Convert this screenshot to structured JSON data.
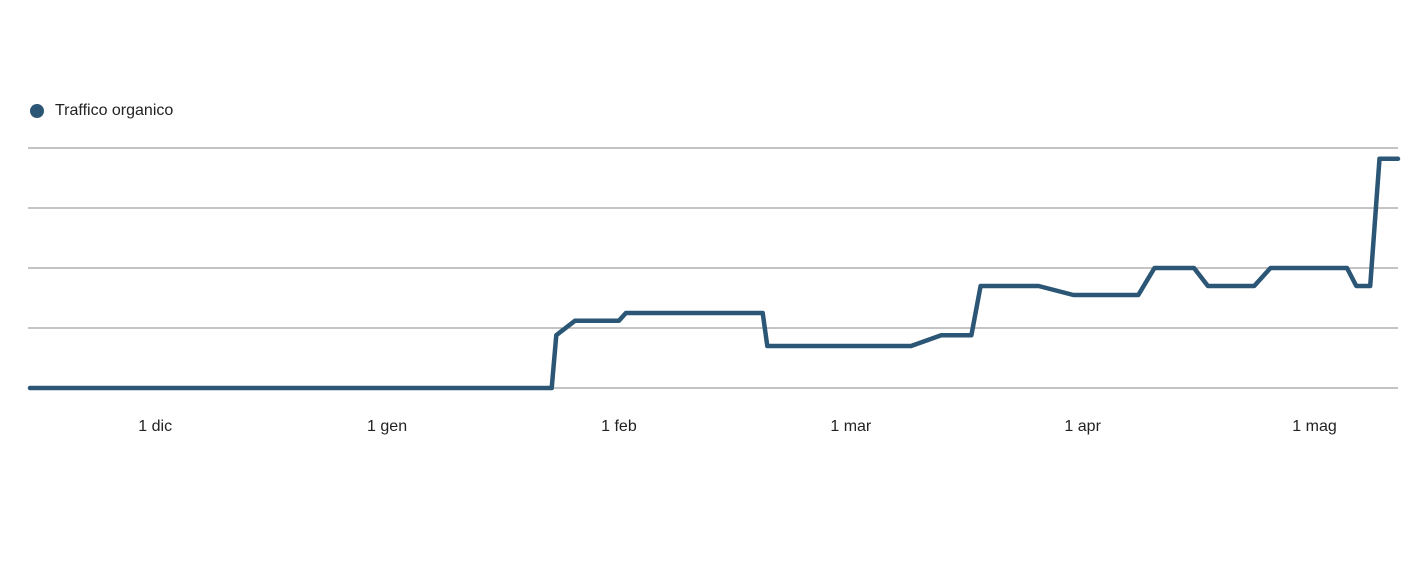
{
  "chart_data": {
    "type": "line",
    "legend": "top-left",
    "grid": true,
    "xlim": [
      -0.54,
      5.36
    ],
    "xticks": [
      {
        "value": 0,
        "label": "1 dic"
      },
      {
        "value": 1,
        "label": "1 gen"
      },
      {
        "value": 2,
        "label": "1 feb"
      },
      {
        "value": 3,
        "label": "1 mar"
      },
      {
        "value": 4,
        "label": "1 apr"
      },
      {
        "value": 5,
        "label": "1 mag"
      }
    ],
    "ylim": [
      0,
      4
    ],
    "yticks": [
      0,
      1,
      2,
      3,
      4
    ],
    "x": [
      -0.54,
      1.71,
      1.73,
      1.81,
      2.0,
      2.03,
      2.62,
      2.64,
      3.26,
      3.39,
      3.52,
      3.56,
      3.81,
      3.96,
      4.24,
      4.31,
      4.48,
      4.54,
      4.74,
      4.81,
      5.14,
      5.18,
      5.24,
      5.28,
      5.36
    ],
    "series": [
      {
        "name": "Traffico organico",
        "color": "#2b5675",
        "values": [
          0,
          0,
          0.88,
          1.12,
          1.12,
          1.25,
          1.25,
          0.7,
          0.7,
          0.88,
          0.88,
          1.7,
          1.7,
          1.55,
          1.55,
          2.0,
          2.0,
          1.7,
          1.7,
          2.0,
          2.0,
          1.7,
          1.7,
          3.82,
          3.82
        ]
      }
    ]
  }
}
